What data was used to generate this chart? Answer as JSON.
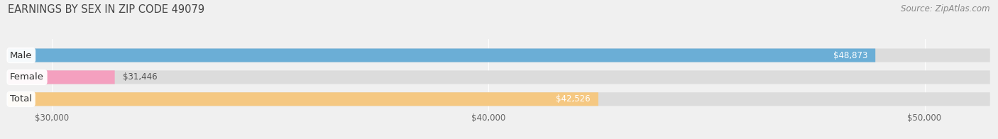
{
  "title": "EARNINGS BY SEX IN ZIP CODE 49079",
  "source": "Source: ZipAtlas.com",
  "categories": [
    "Male",
    "Female",
    "Total"
  ],
  "values": [
    48873,
    31446,
    42526
  ],
  "bar_colors": [
    "#6baed6",
    "#f4a0bf",
    "#f5c882"
  ],
  "label_inside": [
    true,
    false,
    true
  ],
  "xmin": 29000,
  "xmax": 51500,
  "xlim_min": 29000,
  "xlim_max": 51500,
  "xticks": [
    30000,
    40000,
    50000
  ],
  "xtick_labels": [
    "$30,000",
    "$40,000",
    "$50,000"
  ],
  "background_color": "#f0f0f0",
  "bar_bg_color": "#dcdcdc",
  "title_fontsize": 10.5,
  "source_fontsize": 8.5,
  "tick_fontsize": 8.5,
  "label_fontsize": 8.5,
  "cat_fontsize": 9.5
}
